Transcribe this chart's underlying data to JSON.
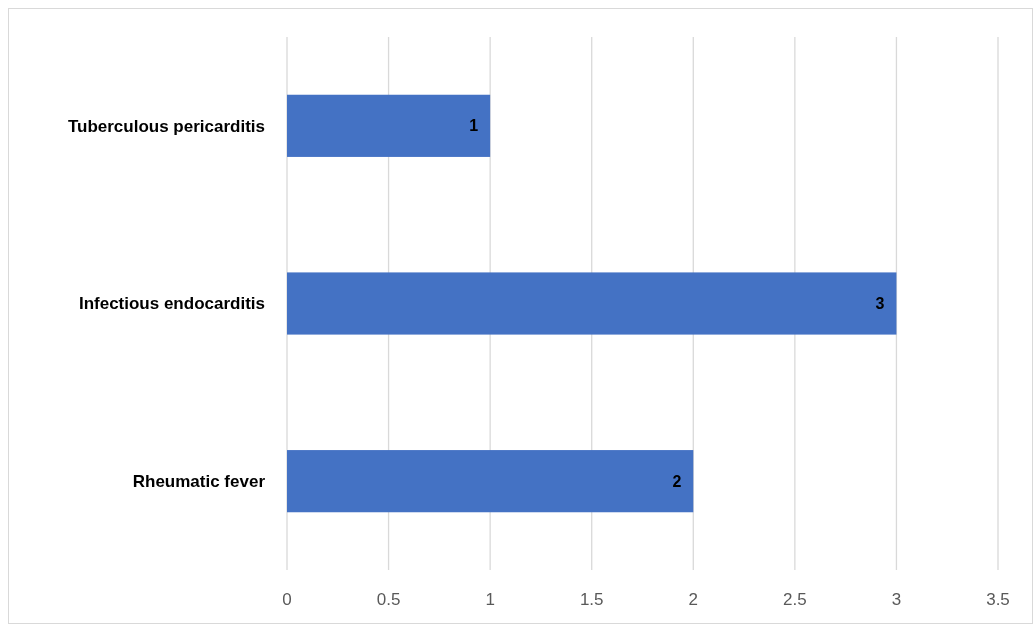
{
  "chart_data": {
    "type": "bar",
    "orientation": "horizontal",
    "categories": [
      "Tuberculous pericarditis",
      "Infectious endocarditis",
      "Rheumatic fever"
    ],
    "values": [
      1,
      3,
      2
    ],
    "color": "#4472c4",
    "xlim": [
      0,
      3.5
    ],
    "xticks": [
      0,
      0.5,
      1,
      1.5,
      2,
      2.5,
      3,
      3.5
    ],
    "grid": "x",
    "data_labels": true
  }
}
